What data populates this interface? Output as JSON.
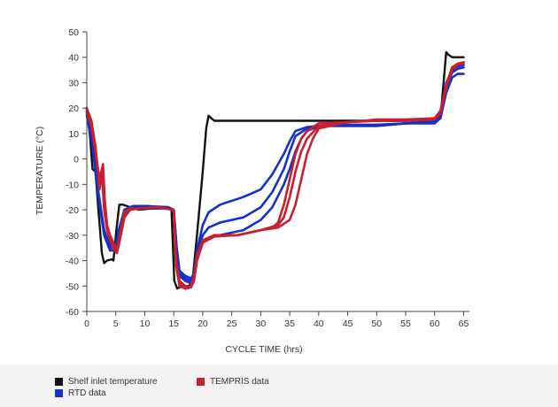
{
  "chart_data": {
    "type": "line",
    "title": "",
    "xlabel": "CYCLE TIME (hrs)",
    "ylabel": "TEMPERATURE (°C)",
    "xlim": [
      0,
      66
    ],
    "ylim": [
      -60,
      50
    ],
    "xticks": [
      0,
      5,
      10,
      15,
      20,
      25,
      30,
      35,
      40,
      45,
      50,
      55,
      60,
      65
    ],
    "yticks": [
      -60,
      -50,
      -40,
      -30,
      -20,
      -10,
      0,
      10,
      20,
      30,
      40,
      50
    ],
    "grid": false,
    "legend_position": "bottom",
    "colors": {
      "shelf": "#111111",
      "rtd": "#1530c8",
      "tempris": "#c8202e"
    },
    "series": [
      {
        "name": "Shelf inlet temperature",
        "color": "#111111",
        "points": [
          [
            0,
            20
          ],
          [
            0.6,
            8
          ],
          [
            1,
            -4
          ],
          [
            1.5,
            -5
          ],
          [
            2,
            -20
          ],
          [
            2.6,
            -37
          ],
          [
            3,
            -41
          ],
          [
            3.5,
            -40
          ],
          [
            4.3,
            -39.5
          ],
          [
            4.6,
            -40
          ],
          [
            5.1,
            -28
          ],
          [
            5.6,
            -18
          ],
          [
            6.2,
            -18
          ],
          [
            7.5,
            -19
          ],
          [
            9,
            -20
          ],
          [
            11,
            -19.5
          ],
          [
            14,
            -19.5
          ],
          [
            14.6,
            -20
          ],
          [
            15.1,
            -48
          ],
          [
            15.6,
            -51
          ],
          [
            16.5,
            -50
          ],
          [
            17.5,
            -50
          ],
          [
            18.2,
            -49
          ],
          [
            19,
            -30
          ],
          [
            20,
            -5
          ],
          [
            20.6,
            12
          ],
          [
            21,
            17
          ],
          [
            21.5,
            16
          ],
          [
            22,
            15
          ],
          [
            30,
            15
          ],
          [
            40,
            15
          ],
          [
            50,
            15
          ],
          [
            55,
            15
          ],
          [
            59,
            15.5
          ],
          [
            60,
            16
          ],
          [
            61,
            16
          ],
          [
            62,
            42
          ],
          [
            62.4,
            41
          ],
          [
            63,
            40
          ],
          [
            65,
            40
          ]
        ]
      },
      {
        "name": "RTD data",
        "color": "#1530c8",
        "lines": [
          [
            [
              0,
              17
            ],
            [
              1,
              5
            ],
            [
              2,
              -15
            ],
            [
              3,
              -30
            ],
            [
              4,
              -36
            ],
            [
              5,
              -36
            ],
            [
              5.5,
              -30
            ],
            [
              6.5,
              -21
            ],
            [
              8,
              -19
            ],
            [
              10,
              -19
            ],
            [
              14,
              -19.5
            ],
            [
              15,
              -20
            ],
            [
              15.5,
              -35
            ],
            [
              16,
              -44
            ],
            [
              17,
              -46
            ],
            [
              18,
              -47
            ],
            [
              18.5,
              -45
            ],
            [
              19,
              -36
            ],
            [
              20,
              -26
            ],
            [
              21,
              -21
            ],
            [
              23,
              -18
            ],
            [
              27,
              -15
            ],
            [
              30,
              -12
            ],
            [
              32,
              -6
            ],
            [
              34,
              2
            ],
            [
              35,
              7
            ],
            [
              36,
              11
            ],
            [
              38,
              12.5
            ],
            [
              40,
              13
            ],
            [
              45,
              13
            ],
            [
              50,
              13
            ],
            [
              55,
              14
            ],
            [
              60,
              14
            ],
            [
              61,
              16
            ],
            [
              62,
              26
            ],
            [
              63,
              32
            ],
            [
              64,
              33.5
            ],
            [
              65,
              33.5
            ]
          ],
          [
            [
              0,
              18
            ],
            [
              1,
              6
            ],
            [
              2,
              -14
            ],
            [
              3,
              -29
            ],
            [
              4,
              -35
            ],
            [
              5,
              -35
            ],
            [
              5.5,
              -29
            ],
            [
              6.5,
              -20
            ],
            [
              8,
              -18.5
            ],
            [
              10,
              -18.5
            ],
            [
              14,
              -19
            ],
            [
              15,
              -20
            ],
            [
              15.5,
              -35
            ],
            [
              16,
              -45
            ],
            [
              17,
              -47
            ],
            [
              18,
              -48
            ],
            [
              18.5,
              -46
            ],
            [
              19,
              -38
            ],
            [
              20,
              -30
            ],
            [
              21,
              -27
            ],
            [
              23,
              -25
            ],
            [
              27,
              -23
            ],
            [
              30,
              -19
            ],
            [
              32,
              -13
            ],
            [
              34,
              -4
            ],
            [
              35,
              3
            ],
            [
              36,
              9
            ],
            [
              38,
              12
            ],
            [
              40,
              13
            ],
            [
              45,
              13
            ],
            [
              50,
              13
            ],
            [
              55,
              14
            ],
            [
              60,
              14.5
            ],
            [
              61,
              17
            ],
            [
              62,
              28
            ],
            [
              63,
              34
            ],
            [
              64,
              35.5
            ],
            [
              65,
              36
            ]
          ],
          [
            [
              0,
              18.5
            ],
            [
              1,
              7
            ],
            [
              2,
              -13
            ],
            [
              3,
              -28
            ],
            [
              4,
              -34
            ],
            [
              5,
              -34
            ],
            [
              5.5,
              -28
            ],
            [
              6.5,
              -20
            ],
            [
              8,
              -18.5
            ],
            [
              10,
              -18.5
            ],
            [
              14,
              -19
            ],
            [
              15,
              -20
            ],
            [
              15.5,
              -36
            ],
            [
              16,
              -46
            ],
            [
              17,
              -48
            ],
            [
              18,
              -49
            ],
            [
              18.5,
              -47
            ],
            [
              19,
              -40
            ],
            [
              20,
              -33
            ],
            [
              21,
              -31
            ],
            [
              23,
              -30
            ],
            [
              27,
              -28
            ],
            [
              30,
              -24
            ],
            [
              32,
              -19
            ],
            [
              34,
              -10
            ],
            [
              35,
              -4
            ],
            [
              36,
              3
            ],
            [
              37,
              8
            ],
            [
              38,
              11
            ],
            [
              40,
              13
            ],
            [
              45,
              13.5
            ],
            [
              50,
              13.5
            ],
            [
              55,
              14
            ],
            [
              60,
              15
            ],
            [
              61,
              18
            ],
            [
              62,
              30
            ],
            [
              63,
              35
            ],
            [
              64,
              36.5
            ],
            [
              65,
              37
            ]
          ]
        ]
      },
      {
        "name": "TEMPRIS data",
        "color": "#c8202e",
        "lines": [
          [
            [
              0,
              20
            ],
            [
              0.8,
              15
            ],
            [
              1.5,
              5
            ],
            [
              2.2,
              -12
            ],
            [
              2.6,
              -5
            ],
            [
              3,
              -20
            ],
            [
              3.5,
              -28
            ],
            [
              4,
              -32
            ],
            [
              4.8,
              -36
            ],
            [
              5.2,
              -37
            ],
            [
              5.6,
              -33
            ],
            [
              6.5,
              -23
            ],
            [
              7.5,
              -20
            ],
            [
              9,
              -19.5
            ],
            [
              12,
              -19
            ],
            [
              15,
              -20
            ],
            [
              15.4,
              -40
            ],
            [
              16,
              -48
            ],
            [
              17,
              -50
            ],
            [
              18,
              -50.5
            ],
            [
              18.5,
              -48
            ],
            [
              19,
              -40
            ],
            [
              20,
              -33
            ],
            [
              22,
              -30.5
            ],
            [
              26,
              -30
            ],
            [
              30,
              -28
            ],
            [
              32,
              -27
            ],
            [
              33,
              -25
            ],
            [
              34,
              -18
            ],
            [
              35,
              -8
            ],
            [
              36,
              2
            ],
            [
              37,
              8
            ],
            [
              38,
              11
            ],
            [
              40,
              14
            ],
            [
              45,
              14.5
            ],
            [
              50,
              15
            ],
            [
              55,
              15
            ],
            [
              60,
              15.5
            ],
            [
              61,
              18
            ],
            [
              62,
              28
            ],
            [
              63,
              35
            ],
            [
              64,
              37
            ],
            [
              65,
              37.5
            ]
          ],
          [
            [
              0,
              19.5
            ],
            [
              0.8,
              14
            ],
            [
              1.5,
              4
            ],
            [
              2.2,
              -10
            ],
            [
              2.7,
              -3
            ],
            [
              3,
              -18
            ],
            [
              3.5,
              -27
            ],
            [
              4,
              -31
            ],
            [
              4.8,
              -35
            ],
            [
              5.2,
              -36
            ],
            [
              5.6,
              -32
            ],
            [
              6.5,
              -22
            ],
            [
              7.5,
              -19.5
            ],
            [
              9,
              -19.5
            ],
            [
              12,
              -19
            ],
            [
              15,
              -20
            ],
            [
              15.4,
              -41
            ],
            [
              16,
              -49
            ],
            [
              17,
              -51
            ],
            [
              18,
              -50.5
            ],
            [
              18.5,
              -47
            ],
            [
              19,
              -39
            ],
            [
              20,
              -32
            ],
            [
              22,
              -30
            ],
            [
              26,
              -30
            ],
            [
              30,
              -28
            ],
            [
              33,
              -26
            ],
            [
              34,
              -23
            ],
            [
              35,
              -15
            ],
            [
              36,
              -5
            ],
            [
              37,
              3
            ],
            [
              38,
              8
            ],
            [
              40,
              13
            ],
            [
              45,
              14.5
            ],
            [
              50,
              15
            ],
            [
              55,
              15
            ],
            [
              60,
              15.5
            ],
            [
              61,
              19
            ],
            [
              62,
              29
            ],
            [
              63,
              36
            ],
            [
              64,
              37.5
            ],
            [
              65,
              38
            ]
          ],
          [
            [
              0,
              19
            ],
            [
              0.8,
              13
            ],
            [
              1.5,
              3
            ],
            [
              2.2,
              -8
            ],
            [
              2.8,
              -2
            ],
            [
              3.1,
              -16
            ],
            [
              3.5,
              -26
            ],
            [
              4,
              -30
            ],
            [
              4.8,
              -34
            ],
            [
              5.2,
              -35
            ],
            [
              5.6,
              -31
            ],
            [
              6.5,
              -21
            ],
            [
              7.5,
              -19.5
            ],
            [
              9,
              -19.5
            ],
            [
              12,
              -19
            ],
            [
              15,
              -20
            ],
            [
              15.4,
              -42
            ],
            [
              16,
              -50
            ],
            [
              17,
              -51
            ],
            [
              18,
              -50
            ],
            [
              18.5,
              -46
            ],
            [
              19,
              -38
            ],
            [
              20,
              -32
            ],
            [
              22,
              -30
            ],
            [
              26,
              -30
            ],
            [
              30,
              -28
            ],
            [
              33,
              -27
            ],
            [
              35,
              -24
            ],
            [
              36,
              -18
            ],
            [
              37,
              -8
            ],
            [
              38,
              2
            ],
            [
              39,
              8
            ],
            [
              40,
              12
            ],
            [
              45,
              14.5
            ],
            [
              50,
              15.5
            ],
            [
              55,
              15.5
            ],
            [
              60,
              16
            ],
            [
              61,
              19
            ],
            [
              62,
              29
            ],
            [
              63,
              36
            ],
            [
              64,
              37.5
            ],
            [
              65,
              38
            ]
          ]
        ]
      }
    ]
  },
  "legend": {
    "items": [
      {
        "label": "Shelf inlet temperature",
        "color": "#111111"
      },
      {
        "label": "RTD data",
        "color": "#1530c8"
      },
      {
        "label": "TEMPRIS data",
        "color": "#c8202e"
      }
    ]
  }
}
